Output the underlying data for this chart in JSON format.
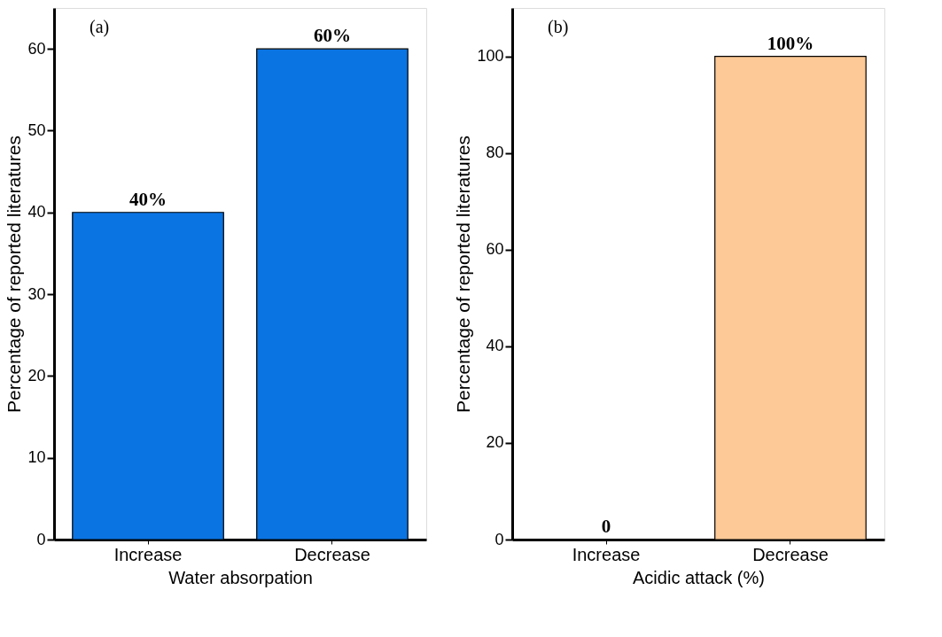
{
  "chart_data": [
    {
      "type": "bar",
      "categories": [
        "Increase",
        "Decrease"
      ],
      "values": [
        40,
        60
      ],
      "colors": [
        "#0b74e3",
        "#0b74e3"
      ],
      "value_labels": [
        "40%",
        "60%"
      ],
      "xlabel": "Water absorpation",
      "ylabel": "Percentage of reported literatures",
      "ylim": [
        0,
        65
      ],
      "yticks": [
        0,
        10,
        20,
        30,
        40,
        50,
        60
      ],
      "grid": false,
      "legend": false,
      "annotations": [
        "(a)"
      ]
    },
    {
      "type": "bar",
      "categories": [
        "Increase",
        "Decrease"
      ],
      "values": [
        0,
        100
      ],
      "colors": [
        "#fdc996",
        "#fdc996"
      ],
      "value_labels": [
        "0",
        "100%"
      ],
      "xlabel": "Acidic attack (%)",
      "ylabel": "Percentage of reported literatures",
      "ylim": [
        0,
        110
      ],
      "yticks": [
        0,
        20,
        40,
        60,
        80,
        100
      ],
      "grid": false,
      "legend": false,
      "annotations": [
        "(b)"
      ]
    }
  ]
}
